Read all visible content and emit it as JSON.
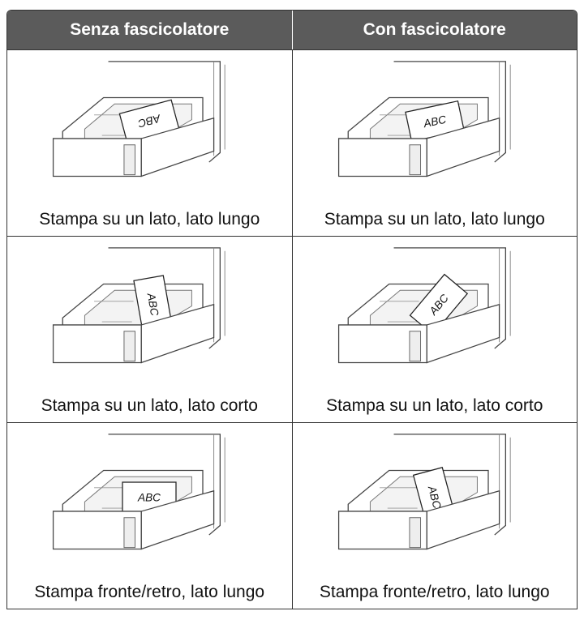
{
  "table": {
    "columns": [
      "Senza fascicolatore",
      "Con fascicolatore"
    ],
    "rows": [
      [
        {
          "caption": "Stampa su un lato, lato lungo",
          "paper_text": "ABC"
        },
        {
          "caption": "Stampa su un lato, lato lungo",
          "paper_text": "ABC"
        }
      ],
      [
        {
          "caption": "Stampa su un lato, lato corto",
          "paper_text": "ABC"
        },
        {
          "caption": "Stampa su un lato, lato corto",
          "paper_text": "ABC"
        }
      ],
      [
        {
          "caption": "Stampa fronte/retro, lato lungo",
          "paper_text": "ABC"
        },
        {
          "caption": "Stampa fronte/retro, lato lungo",
          "paper_text": "ABC"
        }
      ]
    ]
  }
}
